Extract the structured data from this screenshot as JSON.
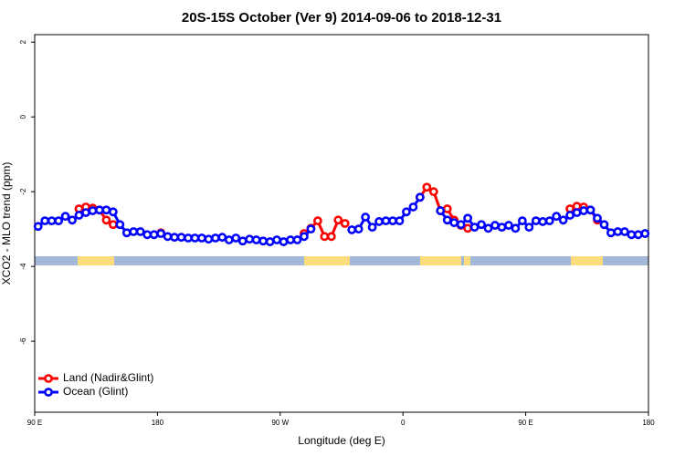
{
  "chart_data": {
    "type": "line",
    "title": "20S-15S October (Ver 9)   2014-09-06 to 2018-12-31",
    "x_label": "Longitude (deg E)",
    "y_label": "XCO2 - MLO trend (ppm)",
    "xlim": [
      90,
      540
    ],
    "ylim": [
      -7.9,
      2.2
    ],
    "xticks": [
      {
        "value": 90,
        "label": "90 E"
      },
      180,
      {
        "value": 270,
        "label": "90 W"
      },
      {
        "value": 360,
        "label": "0"
      },
      {
        "value": 450,
        "label": "90 E"
      },
      {
        "value": 540,
        "label": "180"
      }
    ],
    "yticks": [
      2,
      0,
      -2,
      -4,
      -6
    ],
    "legend": "bottom-left",
    "x": [
      92.5,
      97.5,
      102.5,
      107.5,
      112.5,
      117.5,
      122.5,
      127.5,
      132.5,
      137.5,
      142.5,
      147.5,
      152.5,
      157.5,
      162.5,
      167.5,
      172.5,
      177.5,
      182.5,
      187.5,
      192.5,
      197.5,
      202.5,
      207.5,
      212.5,
      217.5,
      222.5,
      227.5,
      232.5,
      237.5,
      242.5,
      247.5,
      252.5,
      257.5,
      262.5,
      267.5,
      272.5,
      277.5,
      282.5,
      287.5,
      292.5,
      297.5,
      302.5,
      307.5,
      312.5,
      317.5,
      322.5,
      327.5,
      332.5,
      337.5,
      342.5,
      347.5,
      352.5,
      357.5,
      362.5,
      367.5,
      372.5,
      377.5,
      382.5,
      387.5,
      392.5,
      397.5,
      402.5,
      407.5,
      412.5,
      417.5,
      422.5,
      427.5,
      432.5,
      437.5,
      442.5,
      447.5,
      452.5,
      457.5,
      462.5,
      467.5,
      472.5,
      477.5,
      482.5,
      487.5,
      492.5,
      497.5,
      502.5,
      507.5,
      512.5,
      517.5,
      522.5,
      527.5,
      532.5,
      537.5
    ],
    "series": [
      {
        "name": "Land (Nadir&Glint)",
        "color": "#ff0000",
        "values": [
          null,
          null,
          null,
          null,
          null,
          null,
          -2.46,
          -2.41,
          -2.44,
          -2.49,
          -2.76,
          -2.88,
          null,
          null,
          null,
          null,
          null,
          null,
          -3.1,
          null,
          null,
          null,
          null,
          null,
          null,
          null,
          null,
          null,
          null,
          null,
          null,
          null,
          null,
          null,
          null,
          null,
          null,
          null,
          null,
          -3.12,
          -2.98,
          -2.78,
          -3.2,
          -3.2,
          -2.76,
          -2.85,
          null,
          null,
          null,
          null,
          null,
          null,
          null,
          null,
          null,
          null,
          -2.15,
          -1.88,
          -2.0,
          -2.51,
          -2.46,
          -2.76,
          -2.9,
          -2.98,
          null,
          null,
          null,
          null,
          null,
          null,
          null,
          null,
          null,
          null,
          null,
          null,
          null,
          null,
          -2.46,
          -2.39,
          -2.41,
          -2.49,
          -2.76,
          null,
          null,
          null,
          null,
          null,
          null,
          null
        ]
      },
      {
        "name": "Ocean (Glint)",
        "color": "#0000ff",
        "values": [
          -2.93,
          -2.78,
          -2.78,
          -2.78,
          -2.66,
          -2.76,
          -2.63,
          -2.56,
          -2.51,
          -2.49,
          -2.49,
          -2.54,
          -2.88,
          -3.1,
          -3.07,
          -3.07,
          -3.15,
          -3.15,
          -3.12,
          -3.2,
          -3.22,
          -3.22,
          -3.24,
          -3.24,
          -3.24,
          -3.27,
          -3.24,
          -3.22,
          -3.29,
          -3.24,
          -3.32,
          -3.27,
          -3.29,
          -3.32,
          -3.34,
          -3.29,
          -3.34,
          -3.29,
          -3.29,
          -3.2,
          -3.0,
          null,
          null,
          null,
          null,
          null,
          -3.02,
          -3.0,
          -2.68,
          -2.95,
          -2.8,
          -2.78,
          -2.78,
          -2.78,
          -2.54,
          -2.41,
          -2.15,
          null,
          null,
          -2.51,
          -2.76,
          -2.83,
          -2.88,
          -2.71,
          -2.95,
          -2.88,
          -2.98,
          -2.9,
          -2.95,
          -2.9,
          -2.98,
          -2.78,
          -2.95,
          -2.78,
          -2.8,
          -2.78,
          -2.66,
          -2.76,
          -2.63,
          -2.56,
          -2.51,
          -2.49,
          -2.71,
          -2.88,
          -3.1,
          -3.07,
          -3.07,
          -3.15,
          -3.15,
          -3.12
        ]
      }
    ]
  }
}
